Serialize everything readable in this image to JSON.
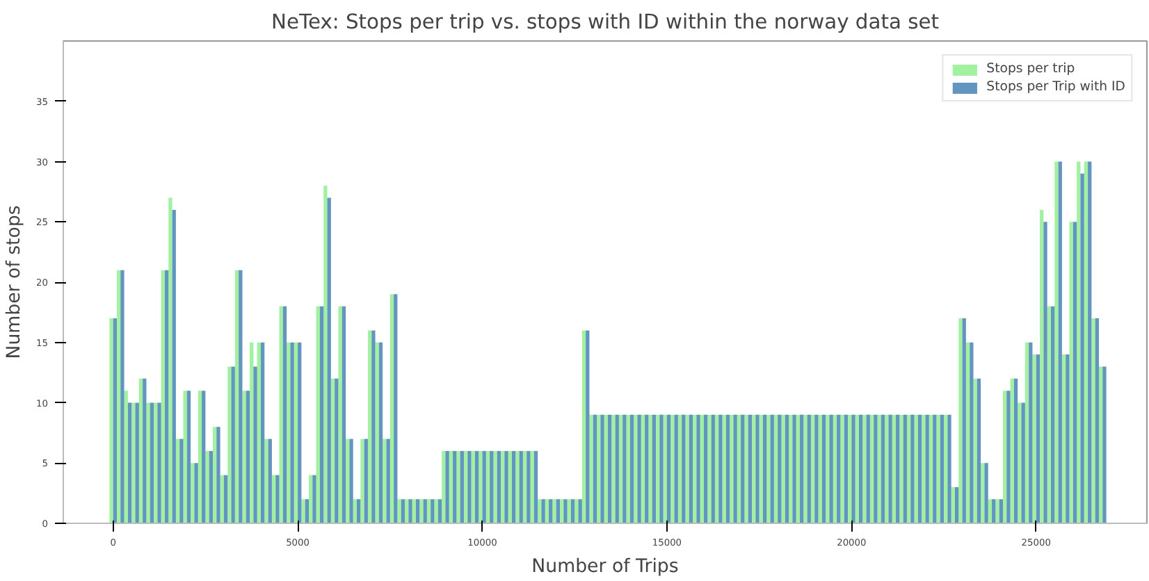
{
  "chart_data": {
    "type": "bar",
    "title": "NeTex: Stops per trip vs. stops with ID within the norway data set",
    "xlabel": "Number of Trips",
    "ylabel": "Number of stops",
    "x": [
      0,
      200,
      400,
      600,
      800,
      1000,
      1200,
      1400,
      1600,
      1800,
      2000,
      2200,
      2400,
      2600,
      2800,
      3000,
      3200,
      3400,
      3600,
      3800,
      4000,
      4200,
      4400,
      4600,
      4800,
      5000,
      5200,
      5400,
      5600,
      5800,
      6000,
      6200,
      6400,
      6600,
      6800,
      7000,
      7200,
      7400,
      7600,
      7800,
      8000,
      8200,
      8400,
      8600,
      8800,
      9000,
      9200,
      9400,
      9600,
      9800,
      10000,
      10200,
      10400,
      10600,
      10800,
      11000,
      11200,
      11400,
      11600,
      11800,
      12000,
      12200,
      12400,
      12600,
      12800,
      13000,
      13200,
      13400,
      13600,
      13800,
      14000,
      14200,
      14400,
      14600,
      14800,
      15000,
      15200,
      15400,
      15600,
      15800,
      16000,
      16200,
      16400,
      16600,
      16800,
      17000,
      17200,
      17400,
      17600,
      17800,
      18000,
      18200,
      18400,
      18600,
      18800,
      19000,
      19200,
      19400,
      19600,
      19800,
      20000,
      20200,
      20400,
      20600,
      20800,
      21000,
      21200,
      21400,
      21600,
      21800,
      22000,
      22200,
      22400,
      22600,
      22800,
      23000,
      23200,
      23400,
      23600,
      23800,
      24000,
      24200,
      24400,
      24600,
      24800,
      25000,
      25200,
      25400,
      25600,
      25800,
      26000,
      26200,
      26400,
      26600,
      26800
    ],
    "series": [
      {
        "name": "Stops per trip",
        "color": "#90ee90",
        "values": [
          17,
          21,
          11,
          10,
          12,
          10,
          10,
          21,
          27,
          7,
          11,
          5,
          11,
          6,
          8,
          4,
          13,
          21,
          11,
          15,
          15,
          7,
          4,
          18,
          15,
          15,
          2,
          4,
          18,
          28,
          12,
          18,
          7,
          2,
          7,
          16,
          15,
          7,
          19,
          2,
          2,
          2,
          2,
          2,
          2,
          6,
          6,
          6,
          6,
          6,
          6,
          6,
          6,
          6,
          6,
          6,
          6,
          6,
          2,
          2,
          2,
          2,
          2,
          2,
          16,
          9,
          9,
          9,
          9,
          9,
          9,
          9,
          9,
          9,
          9,
          9,
          9,
          9,
          9,
          9,
          9,
          9,
          9,
          9,
          9,
          9,
          9,
          9,
          9,
          9,
          9,
          9,
          9,
          9,
          9,
          9,
          9,
          9,
          9,
          9,
          9,
          9,
          9,
          9,
          9,
          9,
          9,
          9,
          9,
          9,
          9,
          9,
          9,
          9,
          3,
          17,
          15,
          12,
          5,
          2,
          2,
          11,
          12,
          10,
          15,
          14,
          26,
          18,
          30,
          14,
          25,
          30,
          30,
          17,
          13
        ]
      },
      {
        "name": "Stops per Trip with ID",
        "color": "#4682b4",
        "values": [
          17,
          21,
          10,
          10,
          12,
          10,
          10,
          21,
          26,
          7,
          11,
          5,
          11,
          6,
          8,
          4,
          13,
          21,
          11,
          13,
          15,
          7,
          4,
          18,
          15,
          15,
          2,
          4,
          18,
          27,
          12,
          18,
          7,
          2,
          7,
          16,
          15,
          7,
          19,
          2,
          2,
          2,
          2,
          2,
          2,
          6,
          6,
          6,
          6,
          6,
          6,
          6,
          6,
          6,
          6,
          6,
          6,
          6,
          2,
          2,
          2,
          2,
          2,
          2,
          16,
          9,
          9,
          9,
          9,
          9,
          9,
          9,
          9,
          9,
          9,
          9,
          9,
          9,
          9,
          9,
          9,
          9,
          9,
          9,
          9,
          9,
          9,
          9,
          9,
          9,
          9,
          9,
          9,
          9,
          9,
          9,
          9,
          9,
          9,
          9,
          9,
          9,
          9,
          9,
          9,
          9,
          9,
          9,
          9,
          9,
          9,
          9,
          9,
          9,
          3,
          17,
          15,
          12,
          5,
          2,
          2,
          11,
          12,
          10,
          15,
          14,
          25,
          18,
          30,
          14,
          25,
          29,
          30,
          17,
          13
        ]
      }
    ],
    "xlim": [
      -1350,
      28000
    ],
    "ylim": [
      0,
      40
    ],
    "xticks": [
      0,
      5000,
      10000,
      15000,
      20000,
      25000
    ],
    "yticks": [
      0,
      5,
      10,
      15,
      20,
      25,
      30,
      35
    ],
    "grid": false,
    "legend": "top right"
  }
}
